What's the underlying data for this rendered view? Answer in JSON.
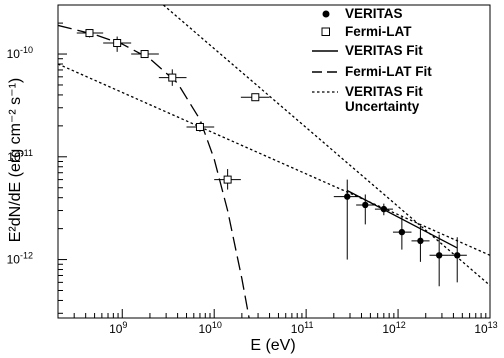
{
  "chart_data": {
    "type": "scatter",
    "xlabel": "E (eV)",
    "ylabel": "E²dN/dE (erg cm⁻² s⁻¹)",
    "xscale": "log",
    "yscale": "log",
    "xlim": [
      200000000.0,
      10000000000000.0
    ],
    "ylim": [
      2.7e-13,
      3e-10
    ],
    "grid": false,
    "legend_position": "top-right",
    "x_ticks": [
      {
        "value": 1000000000.0,
        "base": "10",
        "exp": "9"
      },
      {
        "value": 10000000000.0,
        "base": "10",
        "exp": "10"
      },
      {
        "value": 100000000000.0,
        "base": "10",
        "exp": "11"
      },
      {
        "value": 1000000000000.0,
        "base": "10",
        "exp": "12"
      },
      {
        "value": 10000000000000.0,
        "base": "10",
        "exp": "13"
      }
    ],
    "y_ticks": [
      {
        "value": 1e-10,
        "base": "10",
        "exp": "-10"
      },
      {
        "value": 1e-11,
        "base": "10",
        "exp": "-11"
      },
      {
        "value": 1e-12,
        "base": "10",
        "exp": "-12"
      }
    ],
    "series": [
      {
        "name": "VERITAS",
        "marker": "filled-circle",
        "points": [
          {
            "x": 280000000000.0,
            "y": 4.1e-12,
            "xerr": [
              200000000000.0,
              390000000000.0
            ],
            "yerr": [
              1e-12,
              6e-12
            ]
          },
          {
            "x": 440000000000.0,
            "y": 3.4e-12,
            "xerr": [
              350000000000.0,
              560000000000.0
            ],
            "yerr": [
              2.2e-12,
              4.3e-12
            ]
          },
          {
            "x": 700000000000.0,
            "y": 3.1e-12,
            "xerr": [
              560000000000.0,
              880000000000.0
            ],
            "yerr": [
              2.7e-12,
              3.5e-12
            ]
          },
          {
            "x": 1100000000000.0,
            "y": 1.85e-12,
            "xerr": [
              880000000000.0,
              1400000000000.0
            ],
            "yerr": [
              1.25e-12,
              2.6e-12
            ]
          },
          {
            "x": 1750000000000.0,
            "y": 1.52e-12,
            "xerr": [
              1400000000000.0,
              2200000000000.0
            ],
            "yerr": [
              9.5e-13,
              2.15e-12
            ]
          },
          {
            "x": 2800000000000.0,
            "y": 1.1e-12,
            "xerr": [
              2200000000000.0,
              3500000000000.0
            ],
            "yerr": [
              5.5e-13,
              1.75e-12
            ]
          },
          {
            "x": 4400000000000.0,
            "y": 1.1e-12,
            "xerr": [
              3500000000000.0,
              5600000000000.0
            ],
            "yerr": [
              6e-13,
              1.65e-12
            ]
          }
        ]
      },
      {
        "name": "Fermi-LAT",
        "marker": "open-square",
        "points": [
          {
            "x": 440000000.0,
            "y": 1.6e-10,
            "xerr": [
              320000000.0,
              620000000.0
            ],
            "yerr": [
              1.45e-10,
              1.72e-10
            ]
          },
          {
            "x": 880000000.0,
            "y": 1.28e-10,
            "xerr": [
              620000000.0,
              1250000000.0
            ],
            "yerr": [
              1.05e-10,
              1.48e-10
            ]
          },
          {
            "x": 1750000000.0,
            "y": 1e-10,
            "xerr": [
              1250000000.0,
              2500000000.0
            ],
            "yerr": [
              9.5e-11,
              1.06e-10
            ]
          },
          {
            "x": 3500000000.0,
            "y": 5.9e-11,
            "xerr": [
              2500000000.0,
              5000000000.0
            ],
            "yerr": [
              4.9e-11,
              7.1e-11
            ]
          },
          {
            "x": 7000000000.0,
            "y": 1.95e-11,
            "xerr": [
              5000000000.0,
              10000000000.0
            ],
            "yerr": [
              1.75e-11,
              2.15e-11
            ]
          },
          {
            "x": 14000000000.0,
            "y": 6e-12,
            "xerr": [
              10000000000.0,
              19500000000.0
            ],
            "yerr": [
              4.8e-12,
              7.6e-12
            ]
          },
          {
            "x": 28000000000.0,
            "y": 3.8e-11,
            "xerr": [
              19500000000.0,
              40000000000.0
            ],
            "yerr": [
              3.6e-11,
              4e-11
            ]
          }
        ]
      },
      {
        "name": "VERITAS Fit",
        "line": "solid",
        "x": [
          280000000000.0,
          4400000000000.0
        ],
        "y": [
          4.7e-12,
          1.3e-12
        ]
      },
      {
        "name": "Fermi-LAT Fit",
        "line": "long-dash",
        "x": [
          200000000.0,
          500000000.0,
          1000000000.0,
          2000000000.0,
          4000000000.0,
          7000000000.0,
          10000000000.0,
          14000000000.0,
          20000000000.0,
          24000000000.0
        ],
        "y": [
          1.9e-10,
          1.55e-10,
          1.25e-10,
          9e-11,
          5.2e-11,
          2.3e-11,
          9.5e-12,
          3e-12,
          6.5e-13,
          2.7e-13
        ]
      },
      {
        "name": "VERITAS Fit Uncertainty",
        "line": "dotted",
        "lines": [
          {
            "x": [
              2800000000.0,
              10000000000000.0
            ],
            "y": [
              3e-10,
              5.6e-13
            ]
          },
          {
            "x": [
              200000000.0,
              10000000000000.0
            ],
            "y": [
              8e-11,
              1.1e-12
            ]
          }
        ]
      }
    ]
  },
  "legend": [
    {
      "label": "VERITAS",
      "marker": "filled-circle"
    },
    {
      "label": "Fermi-LAT",
      "marker": "open-square"
    },
    {
      "label": "VERITAS Fit",
      "marker": "solid-line"
    },
    {
      "label": "Fermi-LAT Fit",
      "marker": "dashed-line"
    },
    {
      "label": "VERITAS Fit",
      "label2": "Uncertainty",
      "marker": "dotted-line"
    }
  ],
  "colors": {
    "axes": "#000000",
    "data": "#000000",
    "background": "#ffffff"
  }
}
